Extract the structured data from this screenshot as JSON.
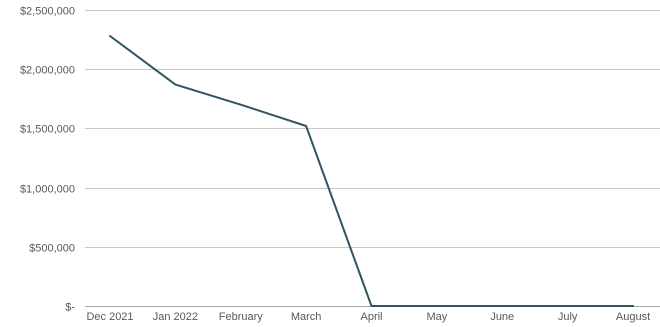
{
  "chart_data": {
    "type": "line",
    "title": "",
    "xlabel": "",
    "ylabel": "",
    "categories": [
      "Dec 2021",
      "Jan 2022",
      "February",
      "March",
      "April",
      "May",
      "June",
      "July",
      "August"
    ],
    "y_ticks": [
      0,
      500000,
      1000000,
      1500000,
      2000000,
      2500000
    ],
    "y_tick_labels": [
      "$-",
      "$500,000",
      "$1,000,000",
      "$1,500,000",
      "$2,000,000",
      "$2,500,000"
    ],
    "ylim": [
      0,
      2500000
    ],
    "grid": true,
    "legend": "none",
    "series": [
      {
        "values": [
          2280000,
          1870000,
          1700000,
          1520000,
          0,
          0,
          0,
          0,
          0
        ],
        "color": "#2f5560"
      }
    ]
  }
}
